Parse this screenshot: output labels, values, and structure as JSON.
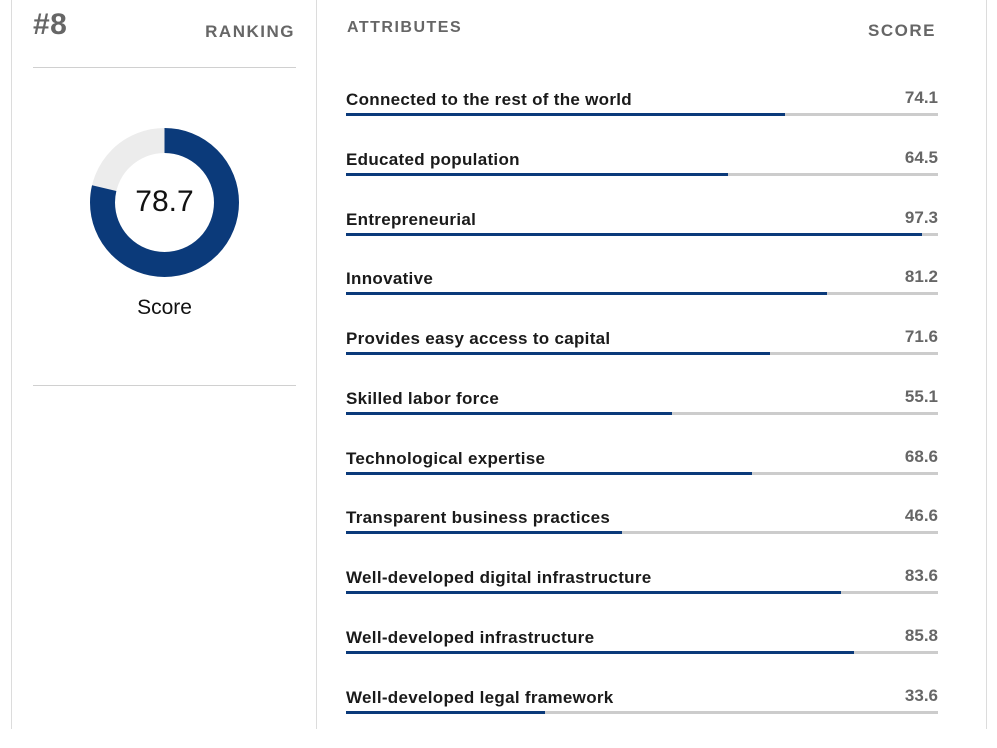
{
  "ranking": {
    "position": "#8",
    "label": "RANKING"
  },
  "overall": {
    "score": "78.7",
    "score_fraction": 0.787,
    "caption": "Score"
  },
  "attributes_panel": {
    "header": "ATTRIBUTES",
    "score_header": "SCORE",
    "items": [
      {
        "label": "Connected to the rest of the world",
        "score": "74.1",
        "value": 74.1
      },
      {
        "label": "Educated population",
        "score": "64.5",
        "value": 64.5
      },
      {
        "label": "Entrepreneurial",
        "score": "97.3",
        "value": 97.3
      },
      {
        "label": "Innovative",
        "score": "81.2",
        "value": 81.2
      },
      {
        "label": "Provides easy access to capital",
        "score": "71.6",
        "value": 71.6
      },
      {
        "label": "Skilled labor force",
        "score": "55.1",
        "value": 55.1
      },
      {
        "label": "Technological expertise",
        "score": "68.6",
        "value": 68.6
      },
      {
        "label": "Transparent business practices",
        "score": "46.6",
        "value": 46.6
      },
      {
        "label": "Well-developed digital infrastructure",
        "score": "83.6",
        "value": 83.6
      },
      {
        "label": "Well-developed infrastructure",
        "score": "85.8",
        "value": 85.8
      },
      {
        "label": "Well-developed legal framework",
        "score": "33.6",
        "value": 33.6
      }
    ]
  },
  "colors": {
    "accent": "#0b3a7a",
    "track": "#cccccc",
    "donut_remainder": "#ececec",
    "muted_text": "#666666"
  }
}
